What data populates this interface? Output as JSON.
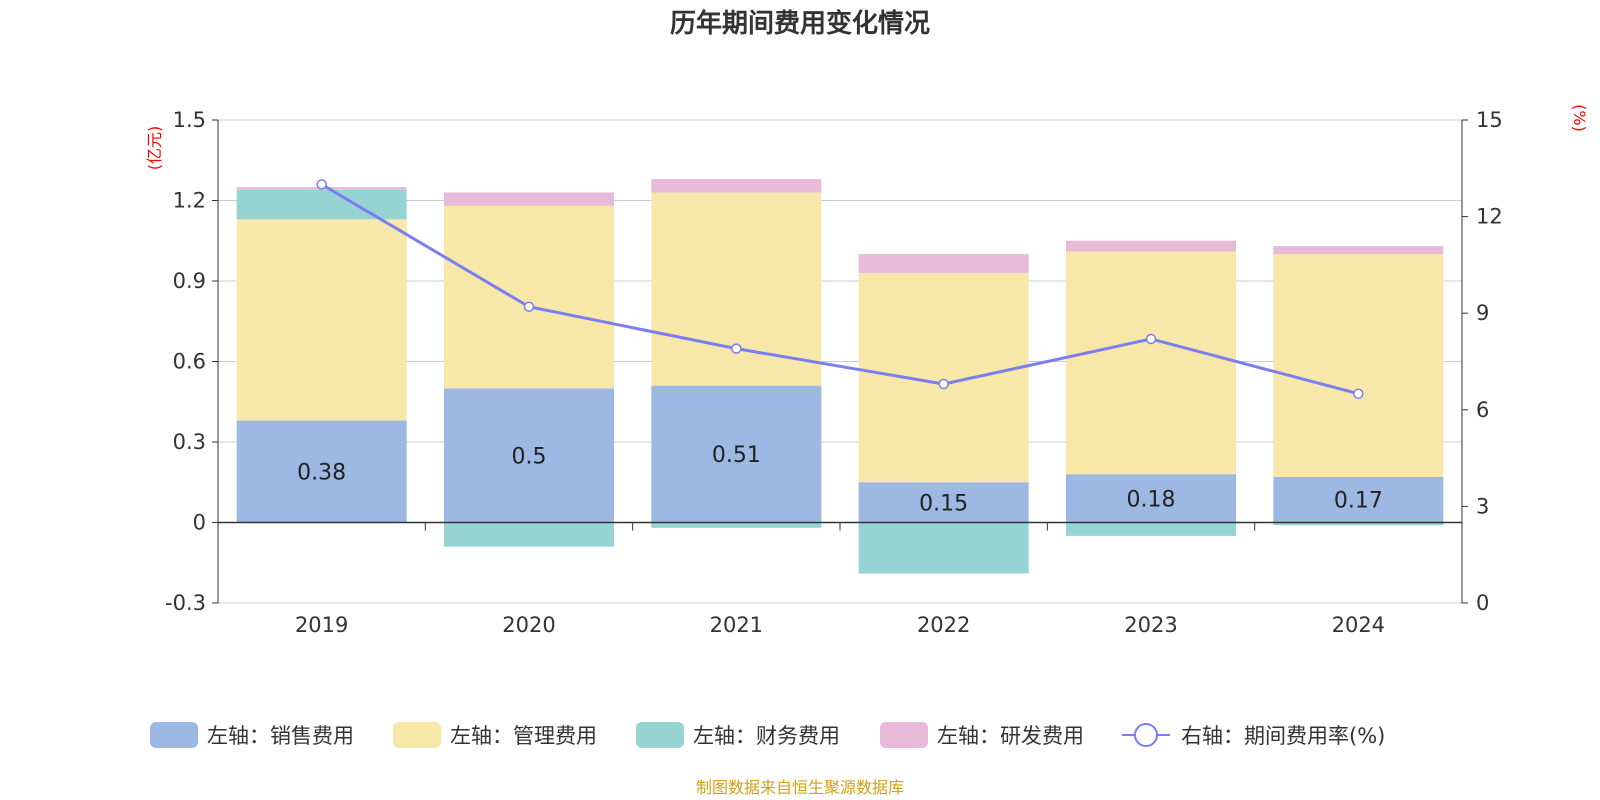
{
  "chart_data": {
    "type": "bar",
    "title": "历年期间费用变化情况",
    "categories": [
      "2019",
      "2020",
      "2021",
      "2022",
      "2023",
      "2024"
    ],
    "left_axis": {
      "unit": "(亿元)",
      "ylim": [
        -0.3,
        1.5
      ],
      "ticks": [
        "1.5",
        "1.2",
        "0.9",
        "0.6",
        "0.3",
        "0",
        "-0.3"
      ]
    },
    "right_axis": {
      "unit": "(%)",
      "ylim": [
        0,
        15
      ],
      "ticks": [
        "15",
        "12",
        "9",
        "6",
        "3",
        "0"
      ]
    },
    "series": [
      {
        "name": "左轴：销售费用",
        "type": "bar",
        "color": "#9db8e2",
        "values": [
          0.38,
          0.5,
          0.51,
          0.15,
          0.18,
          0.17
        ],
        "labels": [
          "0.38",
          "0.5",
          "0.51",
          "0.15",
          "0.18",
          "0.17"
        ]
      },
      {
        "name": "左轴：管理费用",
        "type": "bar",
        "color": "#f7e7a9",
        "values": [
          0.75,
          0.68,
          0.72,
          0.78,
          0.83,
          0.83
        ]
      },
      {
        "name": "左轴：财务费用",
        "type": "bar",
        "color": "#96d4d4",
        "values": [
          0.11,
          -0.09,
          -0.02,
          -0.19,
          -0.05,
          -0.01
        ]
      },
      {
        "name": "左轴：研发费用",
        "type": "bar",
        "color": "#e8b9d8",
        "values": [
          0.01,
          0.05,
          0.05,
          0.07,
          0.04,
          0.03
        ]
      },
      {
        "name": "右轴：期间费用率(%)",
        "type": "line",
        "axis": "right",
        "color": "#7b7ef0",
        "values": [
          13.0,
          9.2,
          7.9,
          6.8,
          8.2,
          6.5
        ]
      }
    ]
  },
  "source_note": "制图数据来自恒生聚源数据库"
}
